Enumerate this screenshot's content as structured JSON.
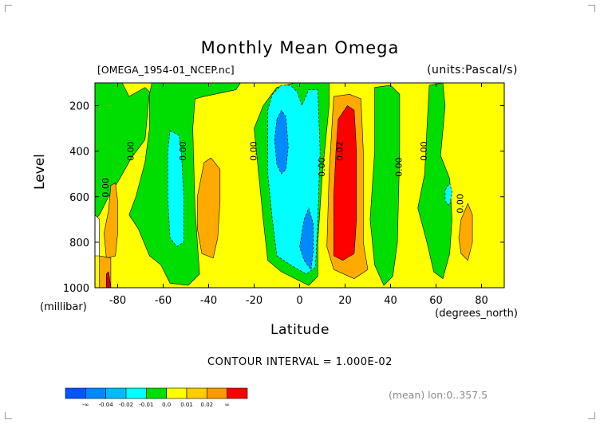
{
  "chart_data": {
    "type": "heatmap",
    "title": "Monthly Mean Omega",
    "file_label": "[OMEGA_1954-01_NCEP.nc]",
    "units_label": "(units:Pascal/s)",
    "xlabel": "Latitude",
    "x_unit": "(degrees_north)",
    "ylabel": "Level",
    "y_unit": "(millibar)",
    "xlim": [
      -90,
      90
    ],
    "ylim": [
      1000,
      100
    ],
    "x_ticks": [
      -80,
      -60,
      -40,
      -20,
      0,
      20,
      40,
      60,
      80
    ],
    "y_ticks": [
      200,
      400,
      600,
      800,
      1000
    ],
    "contour_interval_text": "CONTOUR INTERVAL = 1.000E-02",
    "averaging_text": "(mean) lon:0..357.5",
    "contour_labels": [
      {
        "text": "0.00",
        "lat": -84,
        "level": 560
      },
      {
        "text": "0.00",
        "lat": -73,
        "level": 400
      },
      {
        "text": "0.00",
        "lat": -50,
        "level": 400
      },
      {
        "text": "0.00",
        "lat": -19,
        "level": 400
      },
      {
        "text": "0.00",
        "lat": 11,
        "level": 470
      },
      {
        "text": "0.02",
        "lat": 19,
        "level": 400
      },
      {
        "text": "0.00",
        "lat": 45,
        "level": 470
      },
      {
        "text": "0.00",
        "lat": 56,
        "level": 400
      },
      {
        "text": "0.00",
        "lat": 72,
        "level": 630
      }
    ],
    "regions": [
      {
        "value": 0.005,
        "color": "#ffff00",
        "polygon": [
          [
            -90,
            100
          ],
          [
            90,
            100
          ],
          [
            90,
            1000
          ],
          [
            -90,
            1000
          ]
        ]
      },
      {
        "value": -0.005,
        "color": "#00dd00",
        "polygon": [
          [
            -87,
            100
          ],
          [
            -78,
            100
          ],
          [
            -75,
            160
          ],
          [
            -68,
            120
          ],
          [
            -66,
            140
          ],
          [
            -68,
            350
          ],
          [
            -74,
            430
          ],
          [
            -79,
            520
          ],
          [
            -84,
            600
          ],
          [
            -88,
            680
          ],
          [
            -90,
            700
          ],
          [
            -90,
            100
          ]
        ]
      },
      {
        "value": -0.005,
        "color": "#00dd00",
        "polygon": [
          [
            -65,
            100
          ],
          [
            -26,
            100
          ],
          [
            -28,
            130
          ],
          [
            -42,
            160
          ],
          [
            -46,
            170
          ],
          [
            -47,
            300
          ],
          [
            -46,
            650
          ],
          [
            -44,
            940
          ],
          [
            -49,
            990
          ],
          [
            -57,
            980
          ],
          [
            -61,
            900
          ],
          [
            -66,
            860
          ],
          [
            -71,
            740
          ],
          [
            -75,
            680
          ],
          [
            -72,
            600
          ],
          [
            -68,
            450
          ],
          [
            -66,
            300
          ],
          [
            -66,
            150
          ]
        ]
      },
      {
        "value": -0.005,
        "color": "#00dd00",
        "polygon": [
          [
            -20,
            300
          ],
          [
            -16,
            200
          ],
          [
            -10,
            120
          ],
          [
            -2,
            100
          ],
          [
            13,
            100
          ],
          [
            13,
            200
          ],
          [
            10,
            500
          ],
          [
            8,
            800
          ],
          [
            8,
            950
          ],
          [
            4,
            990
          ],
          [
            -2,
            960
          ],
          [
            -8,
            930
          ],
          [
            -14,
            880
          ],
          [
            -16,
            700
          ],
          [
            -18,
            500
          ]
        ]
      },
      {
        "value": -0.005,
        "color": "#00dd00",
        "polygon": [
          [
            33,
            120
          ],
          [
            40,
            110
          ],
          [
            44,
            150
          ],
          [
            44,
            400
          ],
          [
            43,
            800
          ],
          [
            41,
            950
          ],
          [
            37,
            990
          ],
          [
            33,
            900
          ],
          [
            31,
            700
          ],
          [
            33,
            400
          ]
        ]
      },
      {
        "value": -0.005,
        "color": "#00dd00",
        "polygon": [
          [
            57,
            110
          ],
          [
            63,
            100
          ],
          [
            64,
            200
          ],
          [
            62,
            420
          ],
          [
            66,
            520
          ],
          [
            67,
            700
          ],
          [
            66,
            850
          ],
          [
            63,
            960
          ],
          [
            59,
            930
          ],
          [
            56,
            800
          ],
          [
            52,
            650
          ],
          [
            55,
            500
          ],
          [
            56,
            300
          ]
        ]
      },
      {
        "value": -0.015,
        "color": "#00ffff",
        "polygon": [
          [
            -57,
            310
          ],
          [
            -53,
            330
          ],
          [
            -52,
            400
          ],
          [
            -51,
            600
          ],
          [
            -51,
            800
          ],
          [
            -54,
            820
          ],
          [
            -57,
            780
          ],
          [
            -58,
            600
          ],
          [
            -58,
            400
          ]
        ]
      },
      {
        "value": -0.015,
        "color": "#00ffff",
        "polygon": [
          [
            -14,
            220
          ],
          [
            -12,
            150
          ],
          [
            -8,
            110
          ],
          [
            -4,
            110
          ],
          [
            -1,
            140
          ],
          [
            1,
            200
          ],
          [
            4,
            130
          ],
          [
            8,
            130
          ],
          [
            9,
            400
          ],
          [
            8,
            700
          ],
          [
            7,
            910
          ],
          [
            3,
            940
          ],
          [
            -4,
            900
          ],
          [
            -10,
            860
          ],
          [
            -12,
            700
          ],
          [
            -14,
            500
          ]
        ]
      },
      {
        "value": -0.015,
        "color": "#00ffff",
        "polygon": [
          [
            64,
            570
          ],
          [
            66,
            540
          ],
          [
            67,
            580
          ],
          [
            66,
            640
          ],
          [
            64,
            620
          ]
        ]
      },
      {
        "value": -0.025,
        "color": "#0088ff",
        "polygon": [
          [
            -10,
            260
          ],
          [
            -8,
            220
          ],
          [
            -6,
            250
          ],
          [
            -5,
            380
          ],
          [
            -6,
            480
          ],
          [
            -8,
            500
          ],
          [
            -10,
            460
          ],
          [
            -11,
            350
          ]
        ]
      },
      {
        "value": -0.025,
        "color": "#0088ff",
        "polygon": [
          [
            2,
            700
          ],
          [
            4,
            650
          ],
          [
            6,
            720
          ],
          [
            6,
            840
          ],
          [
            5,
            920
          ],
          [
            2,
            880
          ],
          [
            0,
            820
          ]
        ]
      },
      {
        "value": 0.015,
        "color": "#ffaa00",
        "polygon": [
          [
            -42,
            450
          ],
          [
            -39,
            430
          ],
          [
            -35,
            480
          ],
          [
            -35,
            620
          ],
          [
            -36,
            780
          ],
          [
            -38,
            870
          ],
          [
            -43,
            850
          ],
          [
            -45,
            740
          ],
          [
            -45,
            600
          ]
        ]
      },
      {
        "value": 0.015,
        "color": "#ffaa00",
        "polygon": [
          [
            15,
            160
          ],
          [
            22,
            150
          ],
          [
            27,
            170
          ],
          [
            28,
            400
          ],
          [
            28,
            800
          ],
          [
            30,
            920
          ],
          [
            24,
            960
          ],
          [
            15,
            920
          ],
          [
            12,
            820
          ],
          [
            13,
            500
          ]
        ]
      },
      {
        "value": 0.015,
        "color": "#ffaa00",
        "polygon": [
          [
            -83,
            550
          ],
          [
            -81,
            540
          ],
          [
            -80,
            620
          ],
          [
            -80,
            760
          ],
          [
            -81,
            860
          ],
          [
            -85,
            870
          ],
          [
            -86,
            760
          ],
          [
            -84,
            660
          ]
        ]
      },
      {
        "value": 0.015,
        "color": "#ffaa00",
        "polygon": [
          [
            -88,
            860
          ],
          [
            -83,
            870
          ],
          [
            -83,
            1000
          ],
          [
            -88,
            1000
          ]
        ]
      },
      {
        "value": 0.015,
        "color": "#ffaa00",
        "polygon": [
          [
            71,
            700
          ],
          [
            74,
            630
          ],
          [
            76,
            680
          ],
          [
            76,
            800
          ],
          [
            74,
            880
          ],
          [
            71,
            850
          ],
          [
            70,
            780
          ]
        ]
      },
      {
        "value": 0.025,
        "color": "#ff0000",
        "polygon": [
          [
            17,
            260
          ],
          [
            21,
            200
          ],
          [
            24,
            220
          ],
          [
            25,
            400
          ],
          [
            25,
            700
          ],
          [
            24,
            850
          ],
          [
            19,
            880
          ],
          [
            15,
            860
          ],
          [
            15,
            600
          ],
          [
            16,
            400
          ]
        ]
      },
      {
        "value": 0.035,
        "color": "#cc0000",
        "polygon": [
          [
            -85,
            940
          ],
          [
            -84,
            930
          ],
          [
            -83,
            1000
          ],
          [
            -85,
            1000
          ]
        ]
      },
      {
        "value": -0.005,
        "color": "#ffffff",
        "polygon": [
          [
            -90,
            680
          ],
          [
            -88,
            700
          ],
          [
            -88,
            860
          ],
          [
            -90,
            860
          ]
        ]
      }
    ],
    "colorbar": {
      "colors": [
        "#0055ff",
        "#0088ff",
        "#00bbff",
        "#00ffff",
        "#00dd00",
        "#ffff00",
        "#ffcc00",
        "#ff9900",
        "#ff0000"
      ],
      "labels": [
        "-∞",
        "-0.04",
        "-0.02",
        "-0.01",
        "0.0",
        "0.01",
        "0.02",
        "∞"
      ]
    }
  }
}
